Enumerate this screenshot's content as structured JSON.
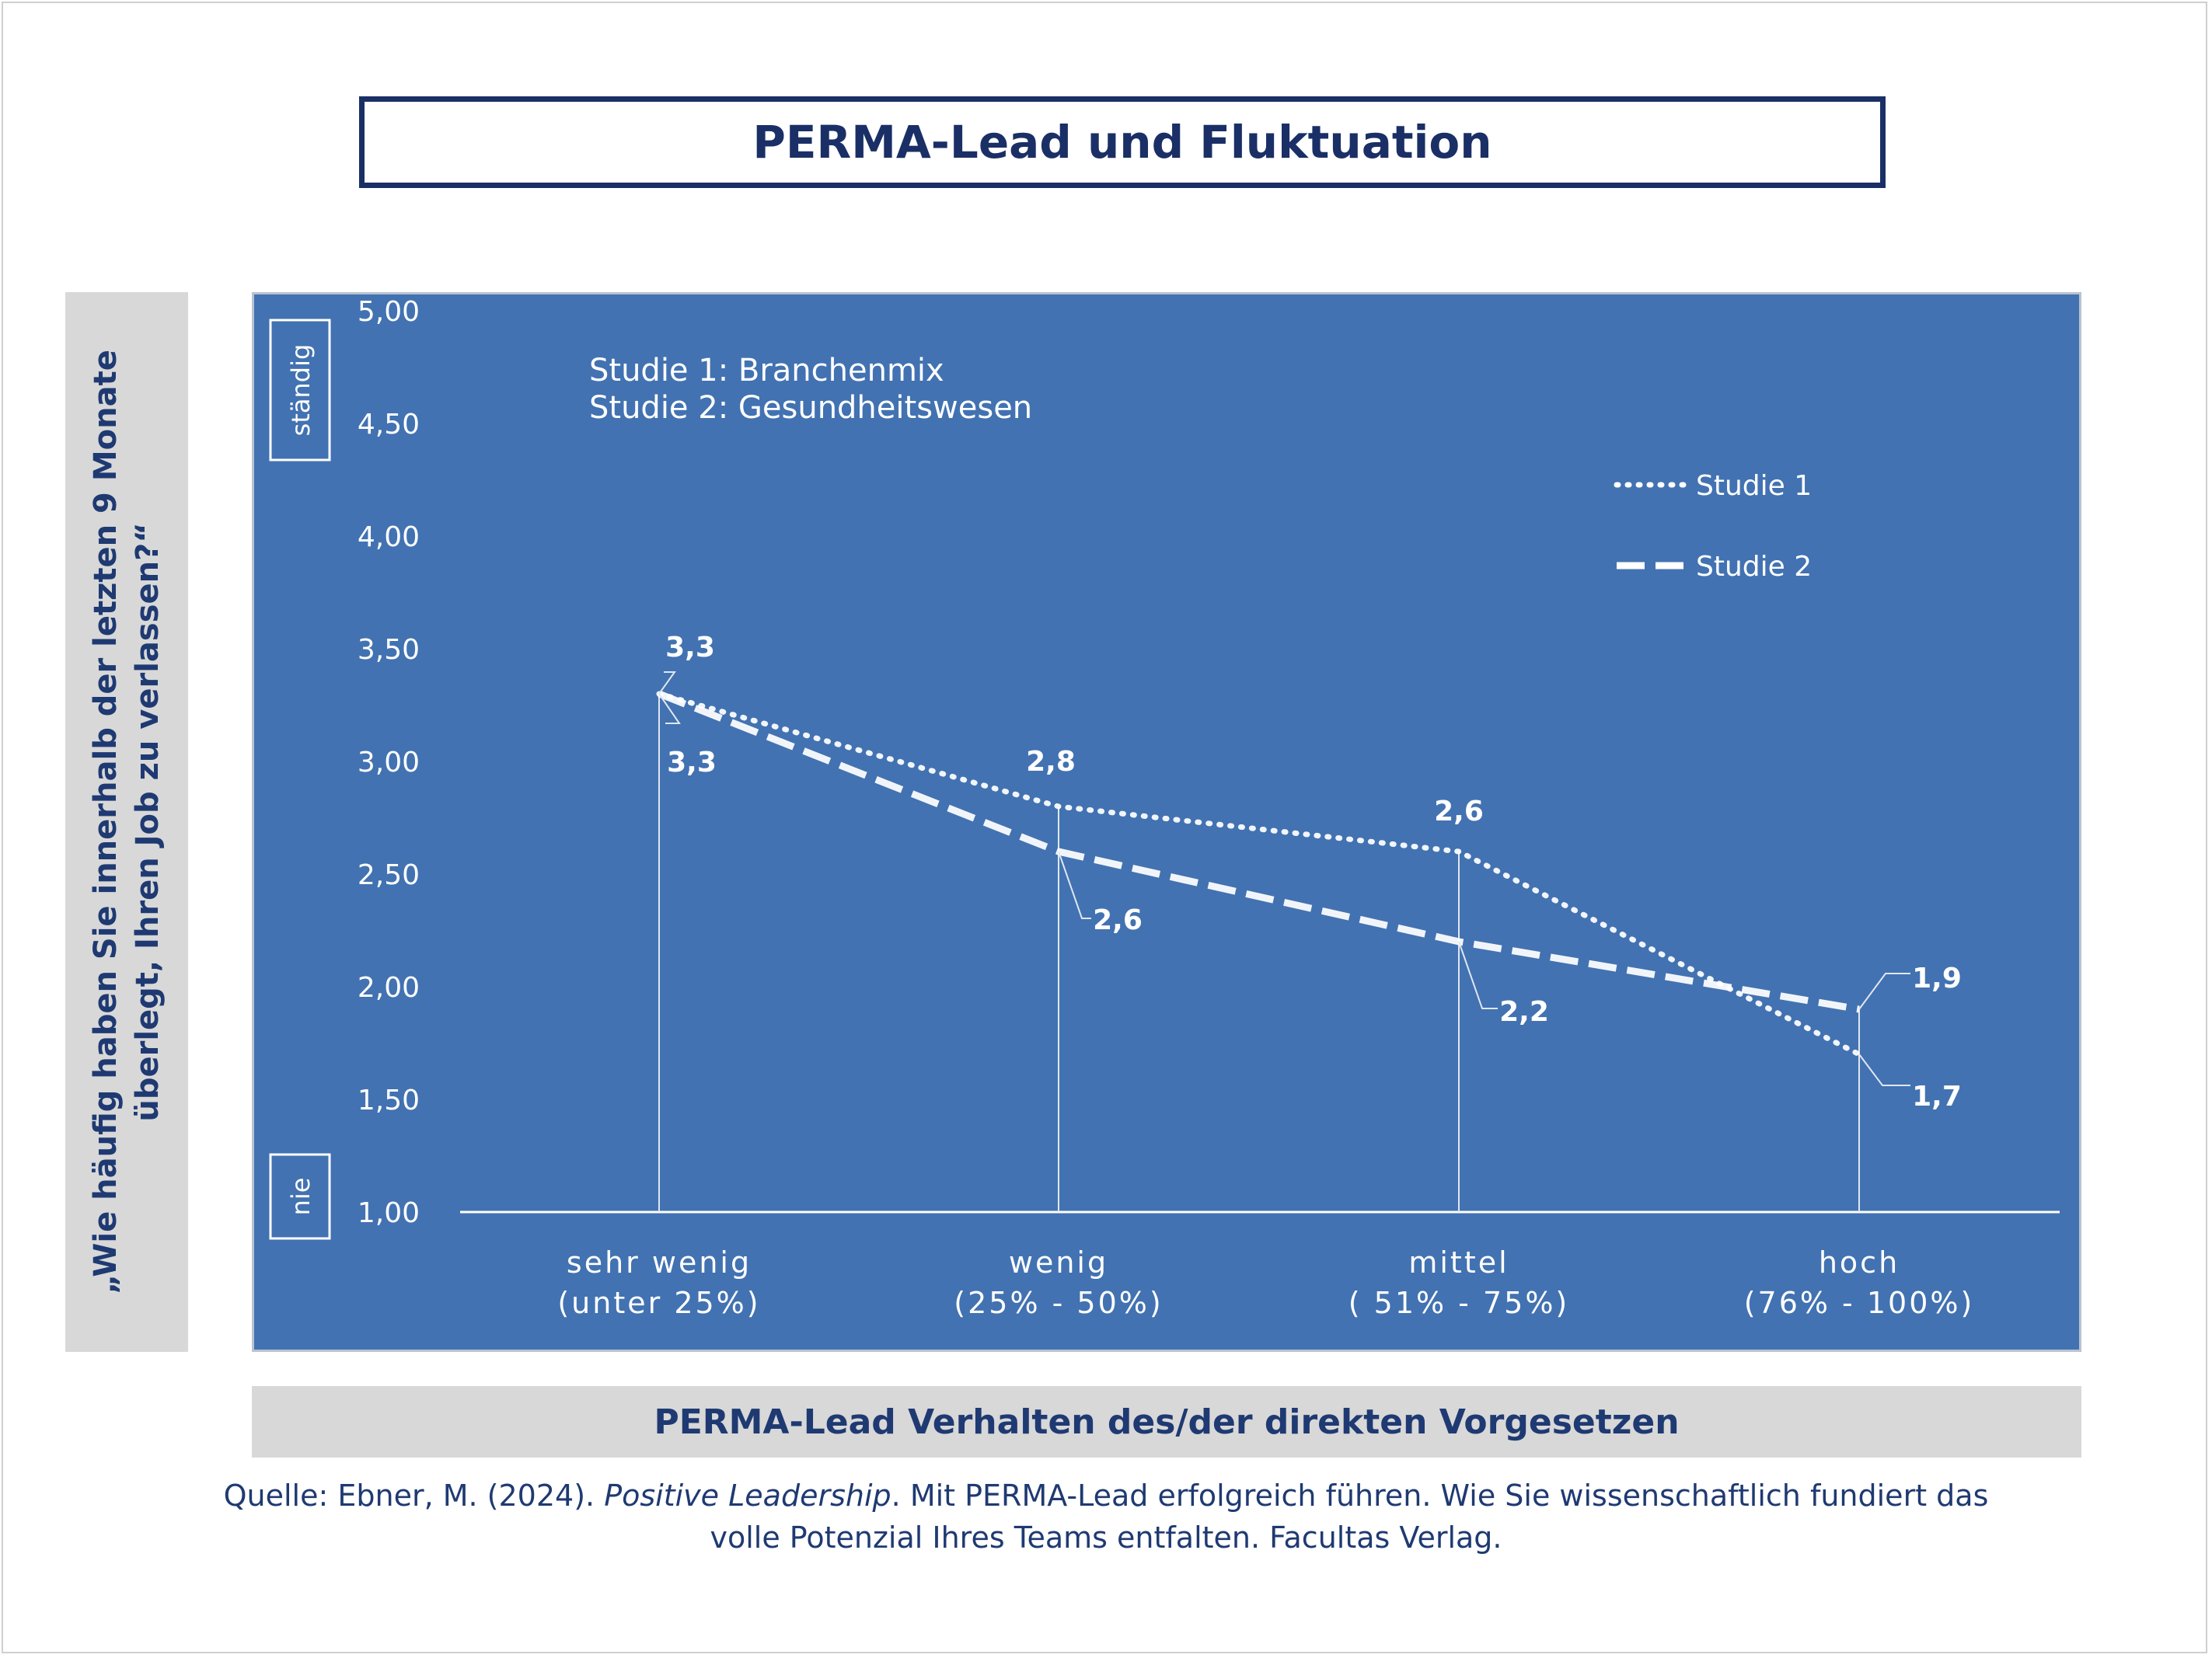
{
  "title": "PERMA-Lead und Fluktuation",
  "y_axis_label": "„Wie häufig haben Sie innerhalb der letzten 9 Monate überlegt, Ihren Job zu verlassen?“",
  "x_axis_label": "PERMA-Lead Verhalten des/der direkten Vorgesetzen",
  "scale_markers": {
    "top": "ständig",
    "bottom": "nie"
  },
  "notes": [
    "Studie 1: Branchenmix",
    "Studie 2: Gesundheitswesen"
  ],
  "source": {
    "prefix": "Quelle: Ebner, M. (2024). ",
    "book": "Positive Leadership",
    "suffix_line1": ". Mit PERMA-Lead erfolgreich führen. Wie Sie wissenschaftlich fundiert das",
    "line2": "volle Potenzial Ihres Teams entfalten. Facultas Verlag."
  },
  "colors": {
    "title": "#1a2f66",
    "text": "#1f3a72",
    "panel": "#4272b1",
    "label_bar": "#d8d8d8",
    "series_line": "#ffffff"
  },
  "chart_data": {
    "type": "line",
    "categories": [
      [
        "sehr wenig",
        "(unter 25%)"
      ],
      [
        "wenig",
        "(25% - 50%)"
      ],
      [
        "mittel",
        "( 51% - 75%)"
      ],
      [
        "hoch",
        "(76% - 100%)"
      ]
    ],
    "ylim": [
      1.0,
      5.0
    ],
    "y_ticks": [
      "1,00",
      "1,50",
      "2,00",
      "2,50",
      "3,00",
      "3,50",
      "4,00",
      "4,50",
      "5,00"
    ],
    "y_tick_values": [
      1.0,
      1.5,
      2.0,
      2.5,
      3.0,
      3.5,
      4.0,
      4.5,
      5.0
    ],
    "legend_position": "right",
    "series": [
      {
        "name": "Studie 1",
        "style": "dotted",
        "values": [
          3.3,
          2.8,
          2.6,
          1.7
        ],
        "labels": [
          "3,3",
          "2,8",
          "2,6",
          "1,7"
        ]
      },
      {
        "name": "Studie 2",
        "style": "dashed",
        "values": [
          3.3,
          2.6,
          2.2,
          1.9
        ],
        "labels": [
          "3,3",
          "2,6",
          "2,2",
          "1,9"
        ]
      }
    ]
  }
}
